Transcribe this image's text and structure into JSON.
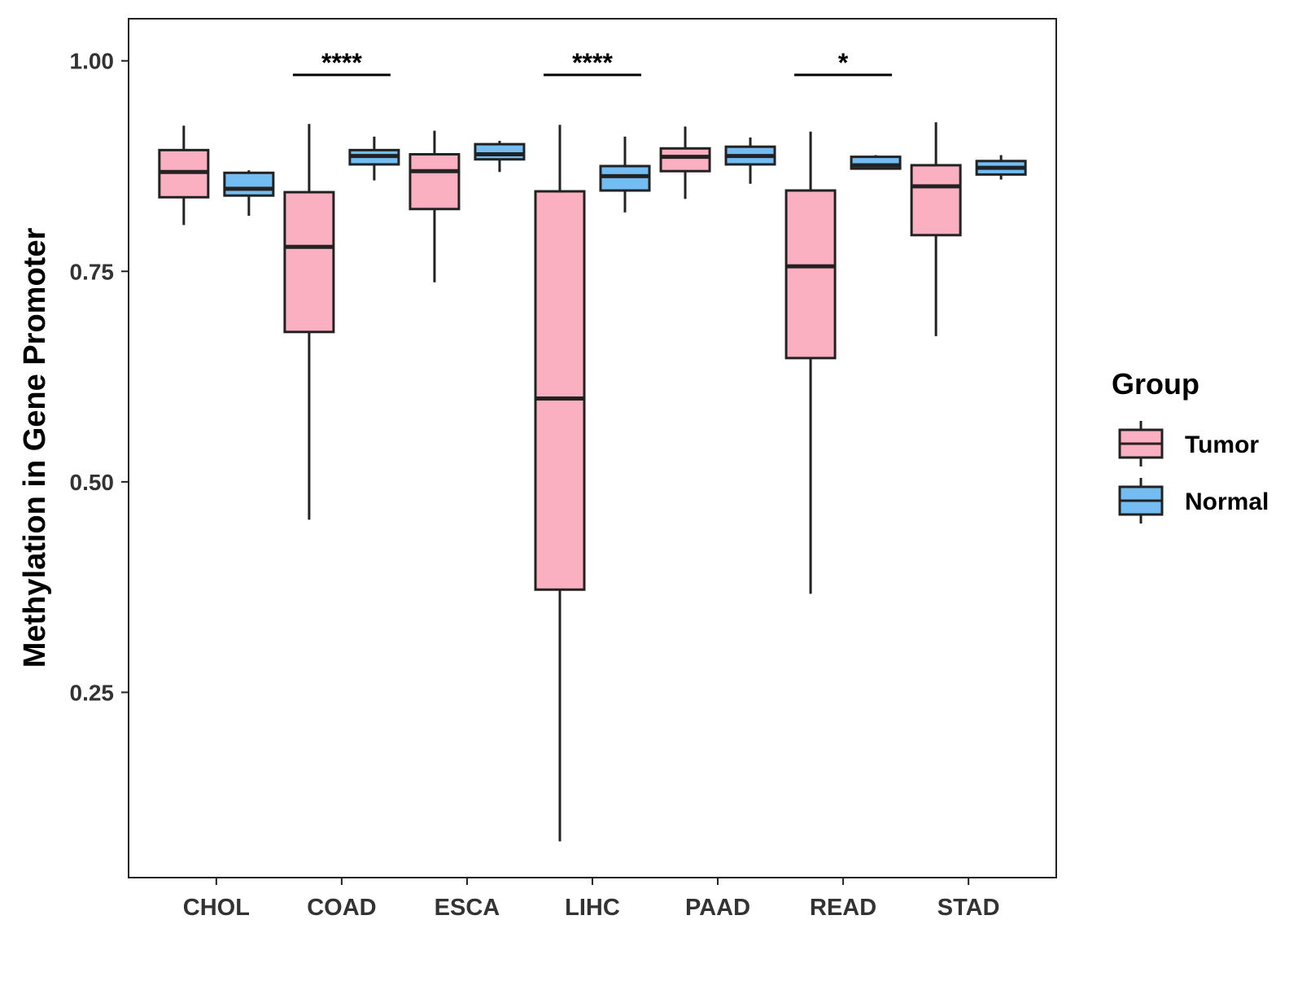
{
  "chart_data": {
    "type": "boxplot",
    "title": "",
    "xlabel": "",
    "ylabel": "Methylation in Gene Promoter",
    "ylim": [
      0.03,
      1.05
    ],
    "yticks": [
      0.25,
      0.5,
      0.75,
      1.0
    ],
    "ytick_labels": [
      "0.25",
      "0.50",
      "0.75",
      "1.00"
    ],
    "grid": false,
    "categories": [
      "CHOL",
      "COAD",
      "ESCA",
      "LIHC",
      "PAAD",
      "READ",
      "STAD"
    ],
    "legend": {
      "title": "Group",
      "position": "right",
      "entries": [
        {
          "name": "Tumor",
          "color": "#FBB0C2"
        },
        {
          "name": "Normal",
          "color": "#74BDF3"
        }
      ]
    },
    "series": [
      {
        "name": "Tumor",
        "color": "#FBB0C2",
        "boxes": [
          {
            "category": "CHOL",
            "min": 0.805,
            "q1": 0.838,
            "median": 0.868,
            "q3": 0.894,
            "max": 0.923
          },
          {
            "category": "COAD",
            "min": 0.455,
            "q1": 0.678,
            "median": 0.779,
            "q3": 0.844,
            "max": 0.925
          },
          {
            "category": "ESCA",
            "min": 0.737,
            "q1": 0.824,
            "median": 0.869,
            "q3": 0.889,
            "max": 0.917
          },
          {
            "category": "LIHC",
            "min": 0.073,
            "q1": 0.372,
            "median": 0.599,
            "q3": 0.845,
            "max": 0.924
          },
          {
            "category": "PAAD",
            "min": 0.836,
            "q1": 0.869,
            "median": 0.886,
            "q3": 0.896,
            "max": 0.922
          },
          {
            "category": "READ",
            "min": 0.367,
            "q1": 0.647,
            "median": 0.756,
            "q3": 0.846,
            "max": 0.916
          },
          {
            "category": "STAD",
            "min": 0.673,
            "q1": 0.793,
            "median": 0.851,
            "q3": 0.876,
            "max": 0.927
          }
        ]
      },
      {
        "name": "Normal",
        "color": "#74BDF3",
        "boxes": [
          {
            "category": "CHOL",
            "min": 0.816,
            "q1": 0.84,
            "median": 0.848,
            "q3": 0.867,
            "max": 0.87
          },
          {
            "category": "COAD",
            "min": 0.858,
            "q1": 0.877,
            "median": 0.887,
            "q3": 0.894,
            "max": 0.91
          },
          {
            "category": "ESCA",
            "min": 0.868,
            "q1": 0.883,
            "median": 0.889,
            "q3": 0.901,
            "max": 0.905
          },
          {
            "category": "LIHC",
            "min": 0.82,
            "q1": 0.846,
            "median": 0.863,
            "q3": 0.875,
            "max": 0.91
          },
          {
            "category": "PAAD",
            "min": 0.854,
            "q1": 0.877,
            "median": 0.887,
            "q3": 0.898,
            "max": 0.909
          },
          {
            "category": "READ",
            "min": 0.872,
            "q1": 0.872,
            "median": 0.876,
            "q3": 0.886,
            "max": 0.888
          },
          {
            "category": "STAD",
            "min": 0.859,
            "q1": 0.865,
            "median": 0.873,
            "q3": 0.881,
            "max": 0.888
          }
        ]
      }
    ],
    "annotations": [
      {
        "category": "COAD",
        "label": "****"
      },
      {
        "category": "LIHC",
        "label": "****"
      },
      {
        "category": "READ",
        "label": "*"
      }
    ]
  }
}
